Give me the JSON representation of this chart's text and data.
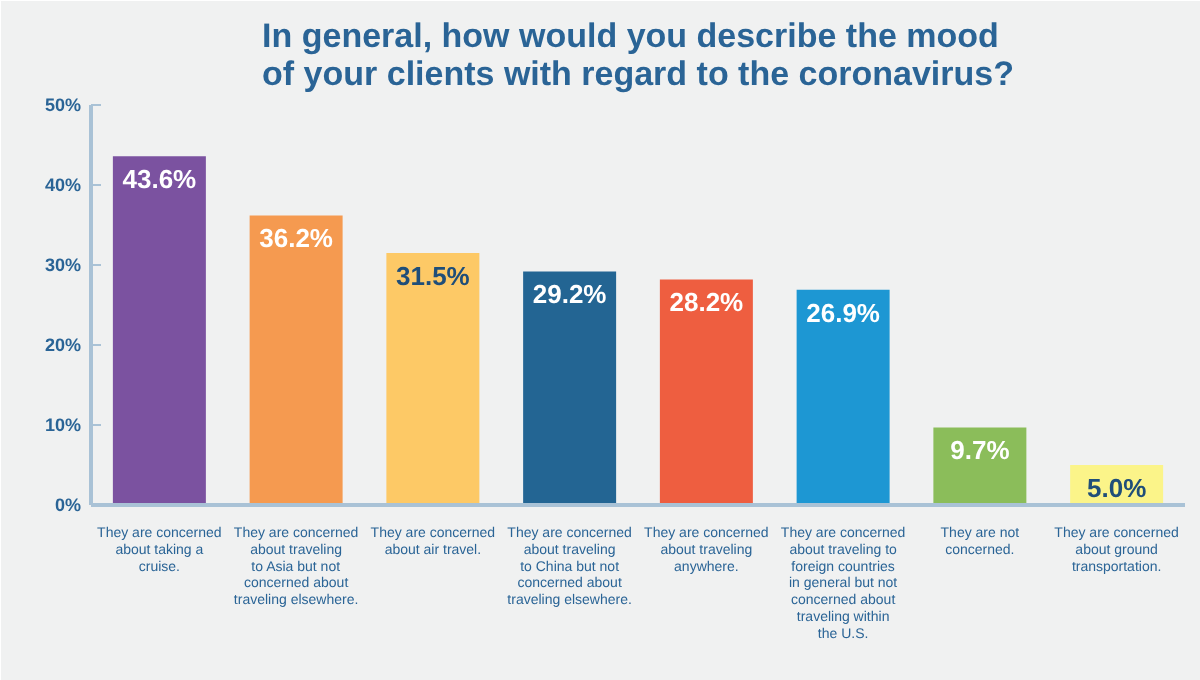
{
  "chart_data": {
    "type": "bar",
    "title": "In general, how would you describe the mood\nof your clients with regard to the coronavirus?",
    "categories": [
      "They are concerned\nabout taking a\ncruise.",
      "They are concerned\nabout traveling\nto Asia but not\nconcerned about\ntraveling elsewhere.",
      "They are concerned\nabout air travel.",
      "They are concerned\nabout traveling\nto China but not\nconcerned about\ntraveling elsewhere.",
      "They are concerned\nabout traveling\nanywhere.",
      "They are concerned\nabout traveling to\nforeign countries\nin general but not\nconcerned about\ntraveling within\nthe U.S.",
      "They are not\nconcerned.",
      "They are concerned\nabout ground\ntransportation."
    ],
    "values": [
      43.6,
      36.2,
      31.5,
      29.2,
      28.2,
      26.9,
      9.7,
      5.0
    ],
    "colors": [
      "#7b52a0",
      "#f59a50",
      "#fdc966",
      "#236593",
      "#ee5e40",
      "#1d97d3",
      "#8bbd5a",
      "#fbf489"
    ],
    "value_labels": [
      "43.6%",
      "36.2%",
      "31.5%",
      "29.2%",
      "28.2%",
      "26.9%",
      "9.7%",
      "5.0%"
    ],
    "ylim": [
      0,
      50
    ],
    "yticks": [
      {
        "value": 0,
        "label": "0%"
      },
      {
        "value": 10,
        "label": "10%"
      },
      {
        "value": 20,
        "label": "20%"
      },
      {
        "value": 30,
        "label": "30%"
      },
      {
        "value": 40,
        "label": "40%"
      },
      {
        "value": 50,
        "label": "50%"
      }
    ],
    "grid": false
  }
}
